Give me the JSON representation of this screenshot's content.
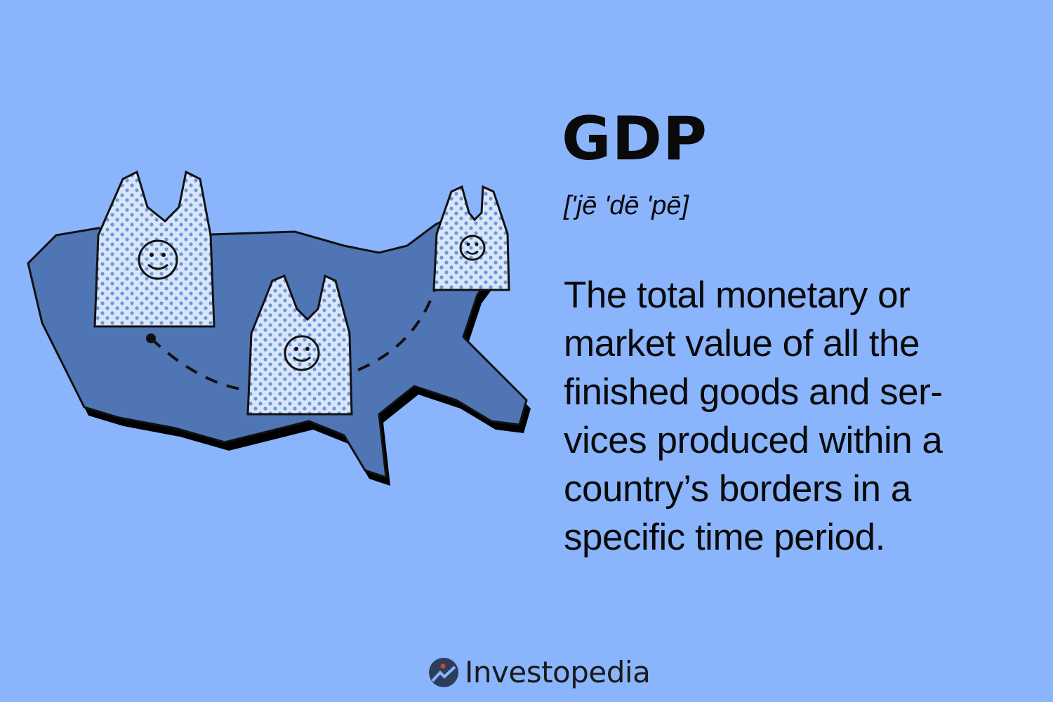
{
  "term": "GDP",
  "pronunciation": "['jē 'dē 'pē]",
  "definition_lines": [
    "The total monetary or",
    "market value of all the",
    "finished goods and ser-",
    "vices produced within a",
    "country’s borders in a",
    "specific time period."
  ],
  "brand": "Investopedia",
  "colors": {
    "background": "#8ab5fc",
    "map": "#4f75b5",
    "logo_dot": "#d24a2a",
    "logo_circle": "#2c3e5c"
  },
  "illustration": {
    "icons": [
      "us-map",
      "shopping-bag-smiley",
      "dashed-route"
    ]
  }
}
